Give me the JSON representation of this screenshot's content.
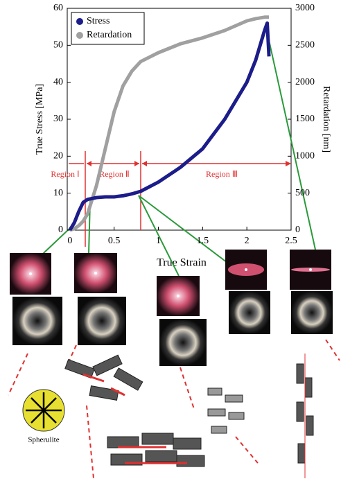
{
  "chart_data": {
    "type": "line",
    "x_label": "True Strain",
    "y_label": "True Stress [MPa]",
    "y2_label": "Retardation [nm]",
    "x": [
      0,
      0.05,
      0.1,
      0.15,
      0.2,
      0.3,
      0.4,
      0.5,
      0.6,
      0.7,
      0.8,
      1.0,
      1.25,
      1.5,
      1.75,
      2.0,
      2.1,
      2.2,
      2.23,
      2.25
    ],
    "series": [
      {
        "name": "Stress",
        "color": "#1c1c8a",
        "values": [
          0,
          2,
          5,
          7.5,
          8.3,
          8.8,
          9,
          9,
          9.3,
          9.8,
          10.5,
          13,
          17,
          22,
          30,
          40,
          46,
          54,
          56,
          47
        ]
      },
      {
        "name": "Retardation",
        "color": "#a0a0a0",
        "axis": "y2",
        "values": [
          0,
          20,
          60,
          120,
          220,
          600,
          1100,
          1600,
          1950,
          2150,
          2280,
          2400,
          2520,
          2600,
          2700,
          2830,
          2860,
          2880,
          2880,
          2880
        ]
      }
    ],
    "xlim": [
      -0.03,
      2.5
    ],
    "xticks": [
      0,
      0.5,
      1,
      1.5,
      2,
      2.5
    ],
    "ylim": [
      0,
      60
    ],
    "yticks": [
      0,
      10,
      20,
      30,
      40,
      50,
      60
    ],
    "y2lim": [
      0,
      3000
    ],
    "y2ticks": [
      0,
      500,
      1000,
      1500,
      2000,
      2500,
      3000
    ],
    "legend": "upper left",
    "annotations": [
      "Region Ⅰ",
      "Region Ⅱ",
      "Region Ⅲ",
      "Spherulite"
    ]
  }
}
